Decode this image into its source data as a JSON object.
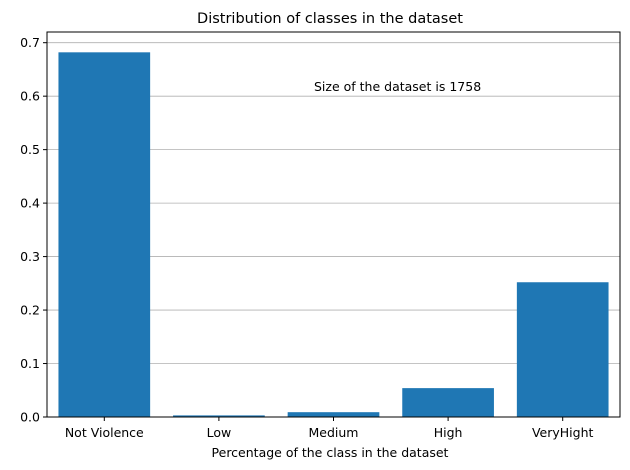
{
  "chart_data": {
    "type": "bar",
    "title": "Distribution of classes in the dataset",
    "xlabel": "Percentage of the class in the dataset",
    "ylabel": "",
    "categories": [
      "Not Violence",
      "Low",
      "Medium",
      "High",
      "VeryHight"
    ],
    "values": [
      0.682,
      0.003,
      0.009,
      0.054,
      0.252
    ],
    "ylim": [
      0,
      0.72
    ],
    "yticks": [
      0.0,
      0.1,
      0.2,
      0.3,
      0.4,
      0.5,
      0.6,
      0.7
    ],
    "ytick_labels": [
      "0.0",
      "0.1",
      "0.2",
      "0.3",
      "0.4",
      "0.5",
      "0.6",
      "0.7"
    ],
    "grid": "y-major",
    "bar_color": "#1f77b4",
    "annotation": "Size of the dataset is 1758"
  }
}
